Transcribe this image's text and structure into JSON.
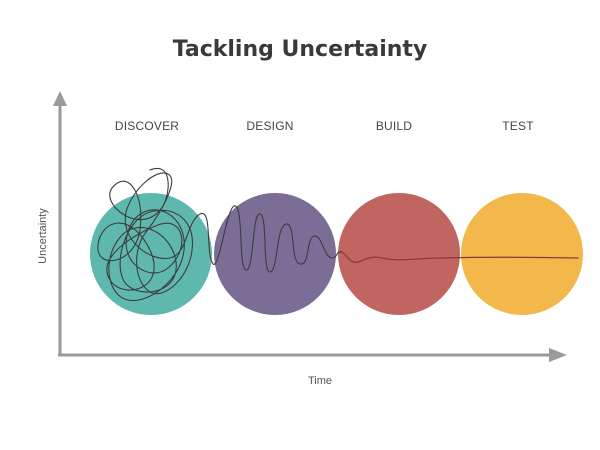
{
  "title": "Tackling Uncertainty",
  "axes": {
    "x_label": "Time",
    "y_label": "Uncertainty",
    "color": "#9a9a9a"
  },
  "phases": [
    {
      "label": "DISCOVER",
      "color": "#5fb8ae"
    },
    {
      "label": "DESIGN",
      "color": "#7b6e96"
    },
    {
      "label": "BUILD",
      "color": "#c0655f"
    },
    {
      "label": "TEST",
      "color": "#f2b84b"
    }
  ],
  "curve": {
    "chaotic_color": "#3c3c3c",
    "calm_color": "#8f3a36"
  }
}
